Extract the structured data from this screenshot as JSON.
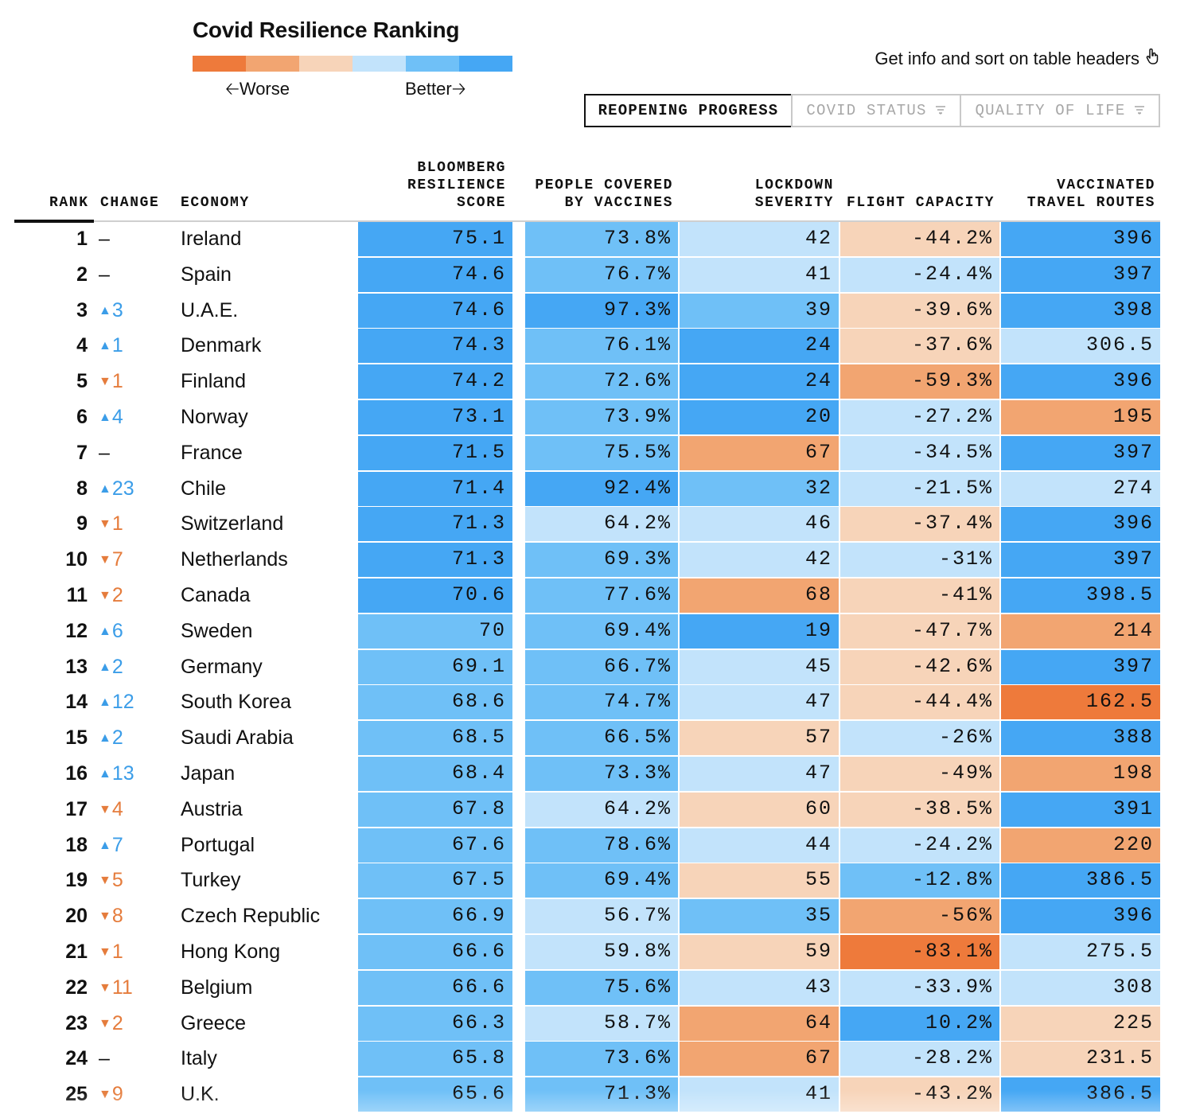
{
  "title": "Covid Resilience Ranking",
  "legend": {
    "colors": [
      "#ee7a3b",
      "#f2a571",
      "#f7d4b9",
      "#c2e3fb",
      "#6fc0f7",
      "#45a7f4"
    ],
    "worse_label": "Worse",
    "better_label": "Better"
  },
  "info_text": "Get info and sort on table headers",
  "info_icon": "pointer-hand-icon",
  "tabs": [
    {
      "label": "REOPENING PROGRESS",
      "active": true
    },
    {
      "label": "COVID STATUS",
      "active": false,
      "icon": "filter-icon"
    },
    {
      "label": "QUALITY OF LIFE",
      "active": false,
      "icon": "filter-icon"
    }
  ],
  "columns": {
    "rank": "RANK",
    "change": "CHANGE",
    "economy": "ECONOMY",
    "score": "BLOOMBERG\nRESILIENCE\nSCORE",
    "vaccines": "PEOPLE COVERED\nBY VACCINES",
    "lockdown": "LOCKDOWN\nSEVERITY",
    "flight": "FLIGHT CAPACITY",
    "routes": "VACCINATED\nTRAVEL ROUTES"
  },
  "color_scale": {
    "o3": "#ee7a3b",
    "o2": "#f2a571",
    "o1": "#f7d4b9",
    "b1": "#c2e3fb",
    "b2": "#6fc0f7",
    "b3": "#45a7f4"
  },
  "rows": [
    {
      "rank": "1",
      "dir": "flat",
      "change": "–",
      "economy": "Ireland",
      "score": "75.1",
      "score_c": "b3",
      "vacc": "73.8%",
      "vacc_c": "b2",
      "lock": "42",
      "lock_c": "b1",
      "flight": "-44.2%",
      "flight_c": "o1",
      "routes": "396",
      "routes_c": "b3"
    },
    {
      "rank": "2",
      "dir": "flat",
      "change": "–",
      "economy": "Spain",
      "score": "74.6",
      "score_c": "b3",
      "vacc": "76.7%",
      "vacc_c": "b2",
      "lock": "41",
      "lock_c": "b1",
      "flight": "-24.4%",
      "flight_c": "b1",
      "routes": "397",
      "routes_c": "b3"
    },
    {
      "rank": "3",
      "dir": "up",
      "change": "3",
      "economy": "U.A.E.",
      "score": "74.6",
      "score_c": "b3",
      "vacc": "97.3%",
      "vacc_c": "b3",
      "lock": "39",
      "lock_c": "b2",
      "flight": "-39.6%",
      "flight_c": "o1",
      "routes": "398",
      "routes_c": "b3"
    },
    {
      "rank": "4",
      "dir": "up",
      "change": "1",
      "economy": "Denmark",
      "score": "74.3",
      "score_c": "b3",
      "vacc": "76.1%",
      "vacc_c": "b2",
      "lock": "24",
      "lock_c": "b3",
      "flight": "-37.6%",
      "flight_c": "o1",
      "routes": "306.5",
      "routes_c": "b1"
    },
    {
      "rank": "5",
      "dir": "down",
      "change": "1",
      "economy": "Finland",
      "score": "74.2",
      "score_c": "b3",
      "vacc": "72.6%",
      "vacc_c": "b2",
      "lock": "24",
      "lock_c": "b3",
      "flight": "-59.3%",
      "flight_c": "o2",
      "routes": "396",
      "routes_c": "b3"
    },
    {
      "rank": "6",
      "dir": "up",
      "change": "4",
      "economy": "Norway",
      "score": "73.1",
      "score_c": "b3",
      "vacc": "73.9%",
      "vacc_c": "b2",
      "lock": "20",
      "lock_c": "b3",
      "flight": "-27.2%",
      "flight_c": "b1",
      "routes": "195",
      "routes_c": "o2"
    },
    {
      "rank": "7",
      "dir": "flat",
      "change": "–",
      "economy": "France",
      "score": "71.5",
      "score_c": "b3",
      "vacc": "75.5%",
      "vacc_c": "b2",
      "lock": "67",
      "lock_c": "o2",
      "flight": "-34.5%",
      "flight_c": "b1",
      "routes": "397",
      "routes_c": "b3"
    },
    {
      "rank": "8",
      "dir": "up",
      "change": "23",
      "economy": "Chile",
      "score": "71.4",
      "score_c": "b3",
      "vacc": "92.4%",
      "vacc_c": "b3",
      "lock": "32",
      "lock_c": "b2",
      "flight": "-21.5%",
      "flight_c": "b1",
      "routes": "274",
      "routes_c": "b1"
    },
    {
      "rank": "9",
      "dir": "down",
      "change": "1",
      "economy": "Switzerland",
      "score": "71.3",
      "score_c": "b3",
      "vacc": "64.2%",
      "vacc_c": "b1",
      "lock": "46",
      "lock_c": "b1",
      "flight": "-37.4%",
      "flight_c": "o1",
      "routes": "396",
      "routes_c": "b3"
    },
    {
      "rank": "10",
      "dir": "down",
      "change": "7",
      "economy": "Netherlands",
      "score": "71.3",
      "score_c": "b3",
      "vacc": "69.3%",
      "vacc_c": "b2",
      "lock": "42",
      "lock_c": "b1",
      "flight": "-31%",
      "flight_c": "b1",
      "routes": "397",
      "routes_c": "b3"
    },
    {
      "rank": "11",
      "dir": "down",
      "change": "2",
      "economy": "Canada",
      "score": "70.6",
      "score_c": "b3",
      "vacc": "77.6%",
      "vacc_c": "b2",
      "lock": "68",
      "lock_c": "o2",
      "flight": "-41%",
      "flight_c": "o1",
      "routes": "398.5",
      "routes_c": "b3"
    },
    {
      "rank": "12",
      "dir": "up",
      "change": "6",
      "economy": "Sweden",
      "score": "70",
      "score_c": "b2",
      "vacc": "69.4%",
      "vacc_c": "b2",
      "lock": "19",
      "lock_c": "b3",
      "flight": "-47.7%",
      "flight_c": "o1",
      "routes": "214",
      "routes_c": "o2"
    },
    {
      "rank": "13",
      "dir": "up",
      "change": "2",
      "economy": "Germany",
      "score": "69.1",
      "score_c": "b2",
      "vacc": "66.7%",
      "vacc_c": "b2",
      "lock": "45",
      "lock_c": "b1",
      "flight": "-42.6%",
      "flight_c": "o1",
      "routes": "397",
      "routes_c": "b3"
    },
    {
      "rank": "14",
      "dir": "up",
      "change": "12",
      "economy": "South Korea",
      "score": "68.6",
      "score_c": "b2",
      "vacc": "74.7%",
      "vacc_c": "b2",
      "lock": "47",
      "lock_c": "b1",
      "flight": "-44.4%",
      "flight_c": "o1",
      "routes": "162.5",
      "routes_c": "o3"
    },
    {
      "rank": "15",
      "dir": "up",
      "change": "2",
      "economy": "Saudi Arabia",
      "score": "68.5",
      "score_c": "b2",
      "vacc": "66.5%",
      "vacc_c": "b2",
      "lock": "57",
      "lock_c": "o1",
      "flight": "-26%",
      "flight_c": "b1",
      "routes": "388",
      "routes_c": "b3"
    },
    {
      "rank": "16",
      "dir": "up",
      "change": "13",
      "economy": "Japan",
      "score": "68.4",
      "score_c": "b2",
      "vacc": "73.3%",
      "vacc_c": "b2",
      "lock": "47",
      "lock_c": "b1",
      "flight": "-49%",
      "flight_c": "o1",
      "routes": "198",
      "routes_c": "o2"
    },
    {
      "rank": "17",
      "dir": "down",
      "change": "4",
      "economy": "Austria",
      "score": "67.8",
      "score_c": "b2",
      "vacc": "64.2%",
      "vacc_c": "b1",
      "lock": "60",
      "lock_c": "o1",
      "flight": "-38.5%",
      "flight_c": "o1",
      "routes": "391",
      "routes_c": "b3"
    },
    {
      "rank": "18",
      "dir": "up",
      "change": "7",
      "economy": "Portugal",
      "score": "67.6",
      "score_c": "b2",
      "vacc": "78.6%",
      "vacc_c": "b2",
      "lock": "44",
      "lock_c": "b1",
      "flight": "-24.2%",
      "flight_c": "b1",
      "routes": "220",
      "routes_c": "o2"
    },
    {
      "rank": "19",
      "dir": "down",
      "change": "5",
      "economy": "Turkey",
      "score": "67.5",
      "score_c": "b2",
      "vacc": "69.4%",
      "vacc_c": "b2",
      "lock": "55",
      "lock_c": "o1",
      "flight": "-12.8%",
      "flight_c": "b2",
      "routes": "386.5",
      "routes_c": "b3"
    },
    {
      "rank": "20",
      "dir": "down",
      "change": "8",
      "economy": "Czech Republic",
      "score": "66.9",
      "score_c": "b2",
      "vacc": "56.7%",
      "vacc_c": "b1",
      "lock": "35",
      "lock_c": "b2",
      "flight": "-56%",
      "flight_c": "o2",
      "routes": "396",
      "routes_c": "b3"
    },
    {
      "rank": "21",
      "dir": "down",
      "change": "1",
      "economy": "Hong Kong",
      "score": "66.6",
      "score_c": "b2",
      "vacc": "59.8%",
      "vacc_c": "b1",
      "lock": "59",
      "lock_c": "o1",
      "flight": "-83.1%",
      "flight_c": "o3",
      "routes": "275.5",
      "routes_c": "b1"
    },
    {
      "rank": "22",
      "dir": "down",
      "change": "11",
      "economy": "Belgium",
      "score": "66.6",
      "score_c": "b2",
      "vacc": "75.6%",
      "vacc_c": "b2",
      "lock": "43",
      "lock_c": "b1",
      "flight": "-33.9%",
      "flight_c": "b1",
      "routes": "308",
      "routes_c": "b1"
    },
    {
      "rank": "23",
      "dir": "down",
      "change": "2",
      "economy": "Greece",
      "score": "66.3",
      "score_c": "b2",
      "vacc": "58.7%",
      "vacc_c": "b1",
      "lock": "64",
      "lock_c": "o2",
      "flight": "10.2%",
      "flight_c": "b3",
      "routes": "225",
      "routes_c": "o1"
    },
    {
      "rank": "24",
      "dir": "flat",
      "change": "–",
      "economy": "Italy",
      "score": "65.8",
      "score_c": "b2",
      "vacc": "73.6%",
      "vacc_c": "b2",
      "lock": "67",
      "lock_c": "o2",
      "flight": "-28.2%",
      "flight_c": "b1",
      "routes": "231.5",
      "routes_c": "o1"
    },
    {
      "rank": "25",
      "dir": "down",
      "change": "9",
      "economy": "U.K.",
      "score": "65.6",
      "score_c": "b2",
      "vacc": "71.3%",
      "vacc_c": "b2",
      "lock": "41",
      "lock_c": "b1",
      "flight": "-43.2%",
      "flight_c": "o1",
      "routes": "386.5",
      "routes_c": "b3"
    }
  ]
}
